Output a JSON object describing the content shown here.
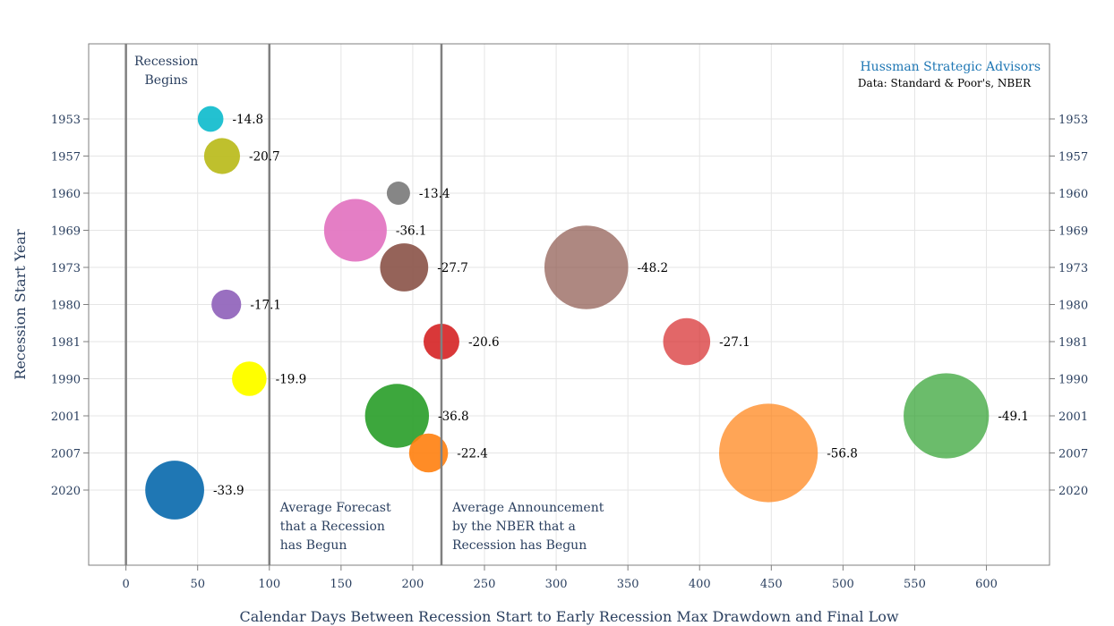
{
  "chart_data": {
    "type": "scatter",
    "subtype": "bubble",
    "title": "",
    "xlabel": "Calendar Days Between Recession Start to Early Recession Max Drawdown and Final Low",
    "ylabel": "Recession Start Year",
    "xlim": [
      -26,
      644
    ],
    "x_ticks": [
      0,
      50,
      100,
      150,
      200,
      250,
      300,
      350,
      400,
      450,
      500,
      550,
      600
    ],
    "y_categories": [
      "1953",
      "1957",
      "1960",
      "1969",
      "1973",
      "1980",
      "1981",
      "1990",
      "2001",
      "2007",
      "2020"
    ],
    "y_axis_mirrored_right": true,
    "grid": true,
    "legend": "none",
    "size_encodes": "max drawdown (%) magnitude",
    "points": [
      {
        "year": "1953",
        "days": 59,
        "value": -14.8,
        "label": "-14.8",
        "color": "#17becf",
        "opacity": 0.95
      },
      {
        "year": "1957",
        "days": 67,
        "value": -20.7,
        "label": "-20.7",
        "color": "#bcbd22",
        "opacity": 0.95
      },
      {
        "year": "1960",
        "days": 190,
        "value": -13.4,
        "label": "-13.4",
        "color": "#7f7f7f",
        "opacity": 0.95
      },
      {
        "year": "1969",
        "days": 160,
        "value": -36.1,
        "label": "-36.1",
        "color": "#e377c2",
        "opacity": 0.95
      },
      {
        "year": "1973",
        "days": 194,
        "value": -27.7,
        "label": "-27.7",
        "color": "#8c564b",
        "opacity": 0.92
      },
      {
        "year": "1973",
        "days": 321,
        "value": -48.2,
        "label": "-48.2",
        "color": "#8c564b",
        "opacity": 0.7
      },
      {
        "year": "1980",
        "days": 70,
        "value": -17.1,
        "label": "-17.1",
        "color": "#9467bd",
        "opacity": 0.95
      },
      {
        "year": "1981",
        "days": 220,
        "value": -20.6,
        "label": "-20.6",
        "color": "#d62728",
        "opacity": 0.92
      },
      {
        "year": "1981",
        "days": 391,
        "value": -27.1,
        "label": "-27.1",
        "color": "#d62728",
        "opacity": 0.7
      },
      {
        "year": "1990",
        "days": 86,
        "value": -19.9,
        "label": "-19.9",
        "color": "#ffff00",
        "opacity": 1.0
      },
      {
        "year": "2001",
        "days": 189,
        "value": -36.8,
        "label": "-36.8",
        "color": "#2ca02c",
        "opacity": 0.92
      },
      {
        "year": "2001",
        "days": 572,
        "value": -49.1,
        "label": "-49.1",
        "color": "#2ca02c",
        "opacity": 0.7
      },
      {
        "year": "2007",
        "days": 211,
        "value": -22.4,
        "label": "-22.4",
        "color": "#ff7f0e",
        "opacity": 0.9
      },
      {
        "year": "2007",
        "days": 448,
        "value": -56.8,
        "label": "-56.8",
        "color": "#ff7f0e",
        "opacity": 0.7
      },
      {
        "year": "2020",
        "days": 34,
        "value": -33.9,
        "label": "-33.9",
        "color": "#1f77b4",
        "opacity": 1.0
      }
    ],
    "reference_lines": [
      {
        "x": 0,
        "lines": [
          "Recession",
          "Begins"
        ],
        "position": "top"
      },
      {
        "x": 100,
        "lines": [
          "Average Forecast",
          "that a Recession",
          "has Begun"
        ],
        "position": "bottom"
      },
      {
        "x": 220,
        "lines": [
          "Average Announcement",
          "by the NBER that a",
          "Recession has Begun"
        ],
        "position": "bottom"
      }
    ],
    "annotations": {
      "brand": "Hussman Strategic Advisors",
      "source": "Data: Standard & Poor's, NBER"
    }
  },
  "colors": {
    "text": "#2a3f5f",
    "grid": "#e5e5e5",
    "axis": "#7f7f7f",
    "brand": "#1f77b4"
  }
}
